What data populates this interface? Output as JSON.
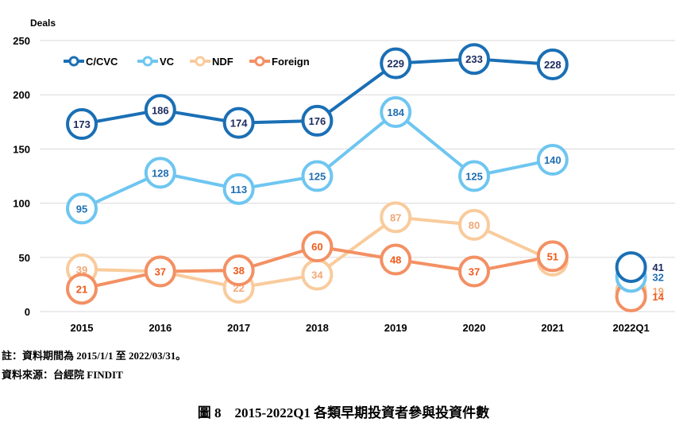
{
  "chart_data": {
    "type": "line",
    "ylabel": "Deals",
    "ylim": [
      0,
      250
    ],
    "yticks": [
      0,
      50,
      100,
      150,
      200,
      250
    ],
    "categories": [
      "2015",
      "2016",
      "2017",
      "2018",
      "2019",
      "2020",
      "2021",
      "2022Q1"
    ],
    "legend_position": "top-left",
    "grid": "horizontal",
    "series": [
      {
        "name": "C/CVC",
        "color": "#1a6fb5",
        "label_color": "#1c2b5e",
        "values": [
          173,
          186,
          174,
          176,
          229,
          233,
          228,
          41
        ]
      },
      {
        "name": "VC",
        "color": "#6ec6f0",
        "label_color": "#1f6fb2",
        "values": [
          95,
          128,
          113,
          125,
          184,
          125,
          140,
          32
        ]
      },
      {
        "name": "NDF",
        "color": "#f9cb9c",
        "label_color": "#f0a877",
        "values": [
          39,
          37,
          22,
          34,
          87,
          80,
          47,
          19
        ]
      },
      {
        "name": "Foreign",
        "color": "#f39063",
        "label_color": "#f05a1a",
        "values": [
          21,
          37,
          38,
          60,
          48,
          37,
          51,
          14
        ]
      }
    ]
  },
  "notes": {
    "note1": "註：資料期間為 2015/1/1 至 2022/03/31。",
    "note2": "資料來源：台經院 FINDIT"
  },
  "caption": "圖 8　2015-2022Q1 各類早期投資者參與投資件數"
}
